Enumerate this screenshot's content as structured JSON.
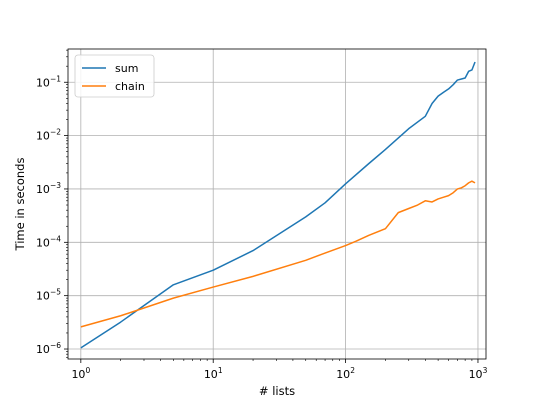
{
  "chart_data": {
    "type": "line",
    "xlabel": "# lists",
    "ylabel": "Time in seconds",
    "xscale": "log",
    "yscale": "log",
    "xlim": [
      0.8,
      1150
    ],
    "ylim": [
      6.5e-07,
      0.42
    ],
    "grid": true,
    "legend_position": "top-left",
    "xticks": [
      {
        "base": "10",
        "exp": "0",
        "value": 1
      },
      {
        "base": "10",
        "exp": "1",
        "value": 10
      },
      {
        "base": "10",
        "exp": "2",
        "value": 100
      },
      {
        "base": "10",
        "exp": "3",
        "value": 1000
      }
    ],
    "yticks": [
      {
        "base": "10",
        "exp": "−6",
        "value": 1e-06
      },
      {
        "base": "10",
        "exp": "−5",
        "value": 1e-05
      },
      {
        "base": "10",
        "exp": "−4",
        "value": 0.0001
      },
      {
        "base": "10",
        "exp": "−3",
        "value": 0.001
      },
      {
        "base": "10",
        "exp": "−2",
        "value": 0.01
      },
      {
        "base": "10",
        "exp": "−1",
        "value": 0.1
      }
    ],
    "series": [
      {
        "name": "sum",
        "color": "#1f77b4",
        "points": [
          [
            1,
            1.05e-06
          ],
          [
            2,
            3.2e-06
          ],
          [
            5,
            1.6e-05
          ],
          [
            10,
            3e-05
          ],
          [
            20,
            7e-05
          ],
          [
            50,
            0.0003
          ],
          [
            70,
            0.00055
          ],
          [
            100,
            0.00125
          ],
          [
            150,
            0.003
          ],
          [
            200,
            0.0055
          ],
          [
            300,
            0.0135
          ],
          [
            400,
            0.023
          ],
          [
            450,
            0.04
          ],
          [
            500,
            0.055
          ],
          [
            550,
            0.065
          ],
          [
            600,
            0.075
          ],
          [
            650,
            0.09
          ],
          [
            700,
            0.11
          ],
          [
            750,
            0.115
          ],
          [
            800,
            0.12
          ],
          [
            850,
            0.16
          ],
          [
            900,
            0.17
          ],
          [
            950,
            0.24
          ]
        ]
      },
      {
        "name": "chain",
        "color": "#ff7f0e",
        "points": [
          [
            1,
            2.6e-06
          ],
          [
            2,
            4.2e-06
          ],
          [
            5,
            9e-06
          ],
          [
            10,
            1.45e-05
          ],
          [
            20,
            2.3e-05
          ],
          [
            50,
            4.6e-05
          ],
          [
            70,
            6.3e-05
          ],
          [
            100,
            8.7e-05
          ],
          [
            120,
            0.000105
          ],
          [
            150,
            0.000135
          ],
          [
            200,
            0.00018
          ],
          [
            250,
            0.00036
          ],
          [
            300,
            0.00043
          ],
          [
            350,
            0.0005
          ],
          [
            400,
            0.0006
          ],
          [
            450,
            0.00057
          ],
          [
            500,
            0.00065
          ],
          [
            550,
            0.0007
          ],
          [
            600,
            0.00075
          ],
          [
            650,
            0.00085
          ],
          [
            700,
            0.001
          ],
          [
            750,
            0.00105
          ],
          [
            800,
            0.00115
          ],
          [
            850,
            0.0013
          ],
          [
            900,
            0.0014
          ],
          [
            950,
            0.0013
          ]
        ]
      }
    ]
  }
}
